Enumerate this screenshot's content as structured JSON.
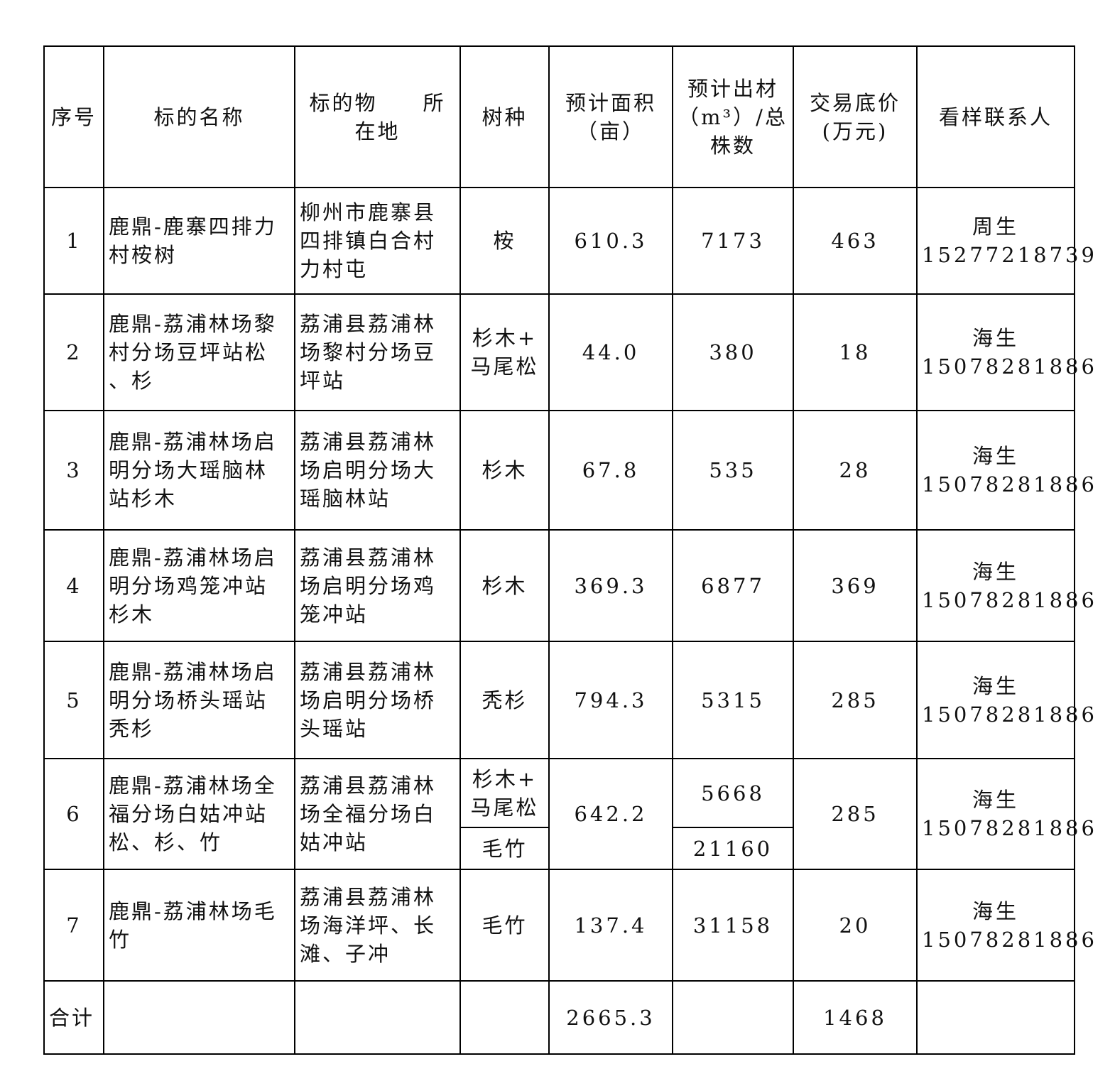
{
  "headers": [
    "序号",
    "标的名称",
    "标的物　　所\n在地",
    "树种",
    "预计面积\n（亩）",
    "预计出材\n（m³）/总\n株数",
    "交易底价\n(万元)",
    "看样联系人"
  ],
  "rows": [
    {
      "no": "1",
      "name": "鹿鼎-鹿寨四排力\n村桉树",
      "location": "柳州市鹿寨县\n四排镇白合村\n力村屯",
      "species": "桉",
      "area": "610.3",
      "volume": "7173",
      "price": "463",
      "contact": "周生\n15277218739"
    },
    {
      "no": "2",
      "name": "鹿鼎-荔浦林场黎\n村分场豆坪站松\n、杉",
      "location": "荔浦县荔浦林\n场黎村分场豆\n坪站",
      "species": "杉木+\n马尾松",
      "area": "44.0",
      "volume": "380",
      "price": "18",
      "contact": "海生\n15078281886"
    },
    {
      "no": "3",
      "name": "鹿鼎-荔浦林场启\n明分场大瑶脑林\n站杉木",
      "location": "荔浦县荔浦林\n场启明分场大\n瑶脑林站",
      "species": "杉木",
      "area": "67.8",
      "volume": "535",
      "price": "28",
      "contact": "海生\n15078281886"
    },
    {
      "no": "4",
      "name": "鹿鼎-荔浦林场启\n明分场鸡笼冲站\n杉木",
      "location": "荔浦县荔浦林\n场启明分场鸡\n笼冲站",
      "species": "杉木",
      "area": "369.3",
      "volume": "6877",
      "price": "369",
      "contact": "海生\n15078281886"
    },
    {
      "no": "5",
      "name": "鹿鼎-荔浦林场启\n明分场桥头瑶站\n秃杉",
      "location": "荔浦县荔浦林\n场启明分场桥\n头瑶站",
      "species": "秃杉",
      "area": "794.3",
      "volume": "5315",
      "price": "285",
      "contact": "海生\n15078281886"
    },
    {
      "no": "6",
      "name": "鹿鼎-荔浦林场全\n福分场白姑冲站\n松、杉、竹",
      "location": "荔浦县荔浦林\n场全福分场白\n姑冲站",
      "species": "杉木+\n马尾松",
      "species2": "毛竹",
      "area": "642.2",
      "volume": "5668",
      "volume2": "21160",
      "price": "285",
      "contact": "海生\n15078281886"
    },
    {
      "no": "7",
      "name": "鹿鼎-荔浦林场毛\n竹",
      "location": "荔浦县荔浦林\n场海洋坪、长\n滩、子冲",
      "species": "毛竹",
      "area": "137.4",
      "volume": "31158",
      "price": "20",
      "contact": "海生\n15078281886"
    }
  ],
  "total": {
    "label": "合计",
    "area": "2665.3",
    "price": "1468"
  }
}
